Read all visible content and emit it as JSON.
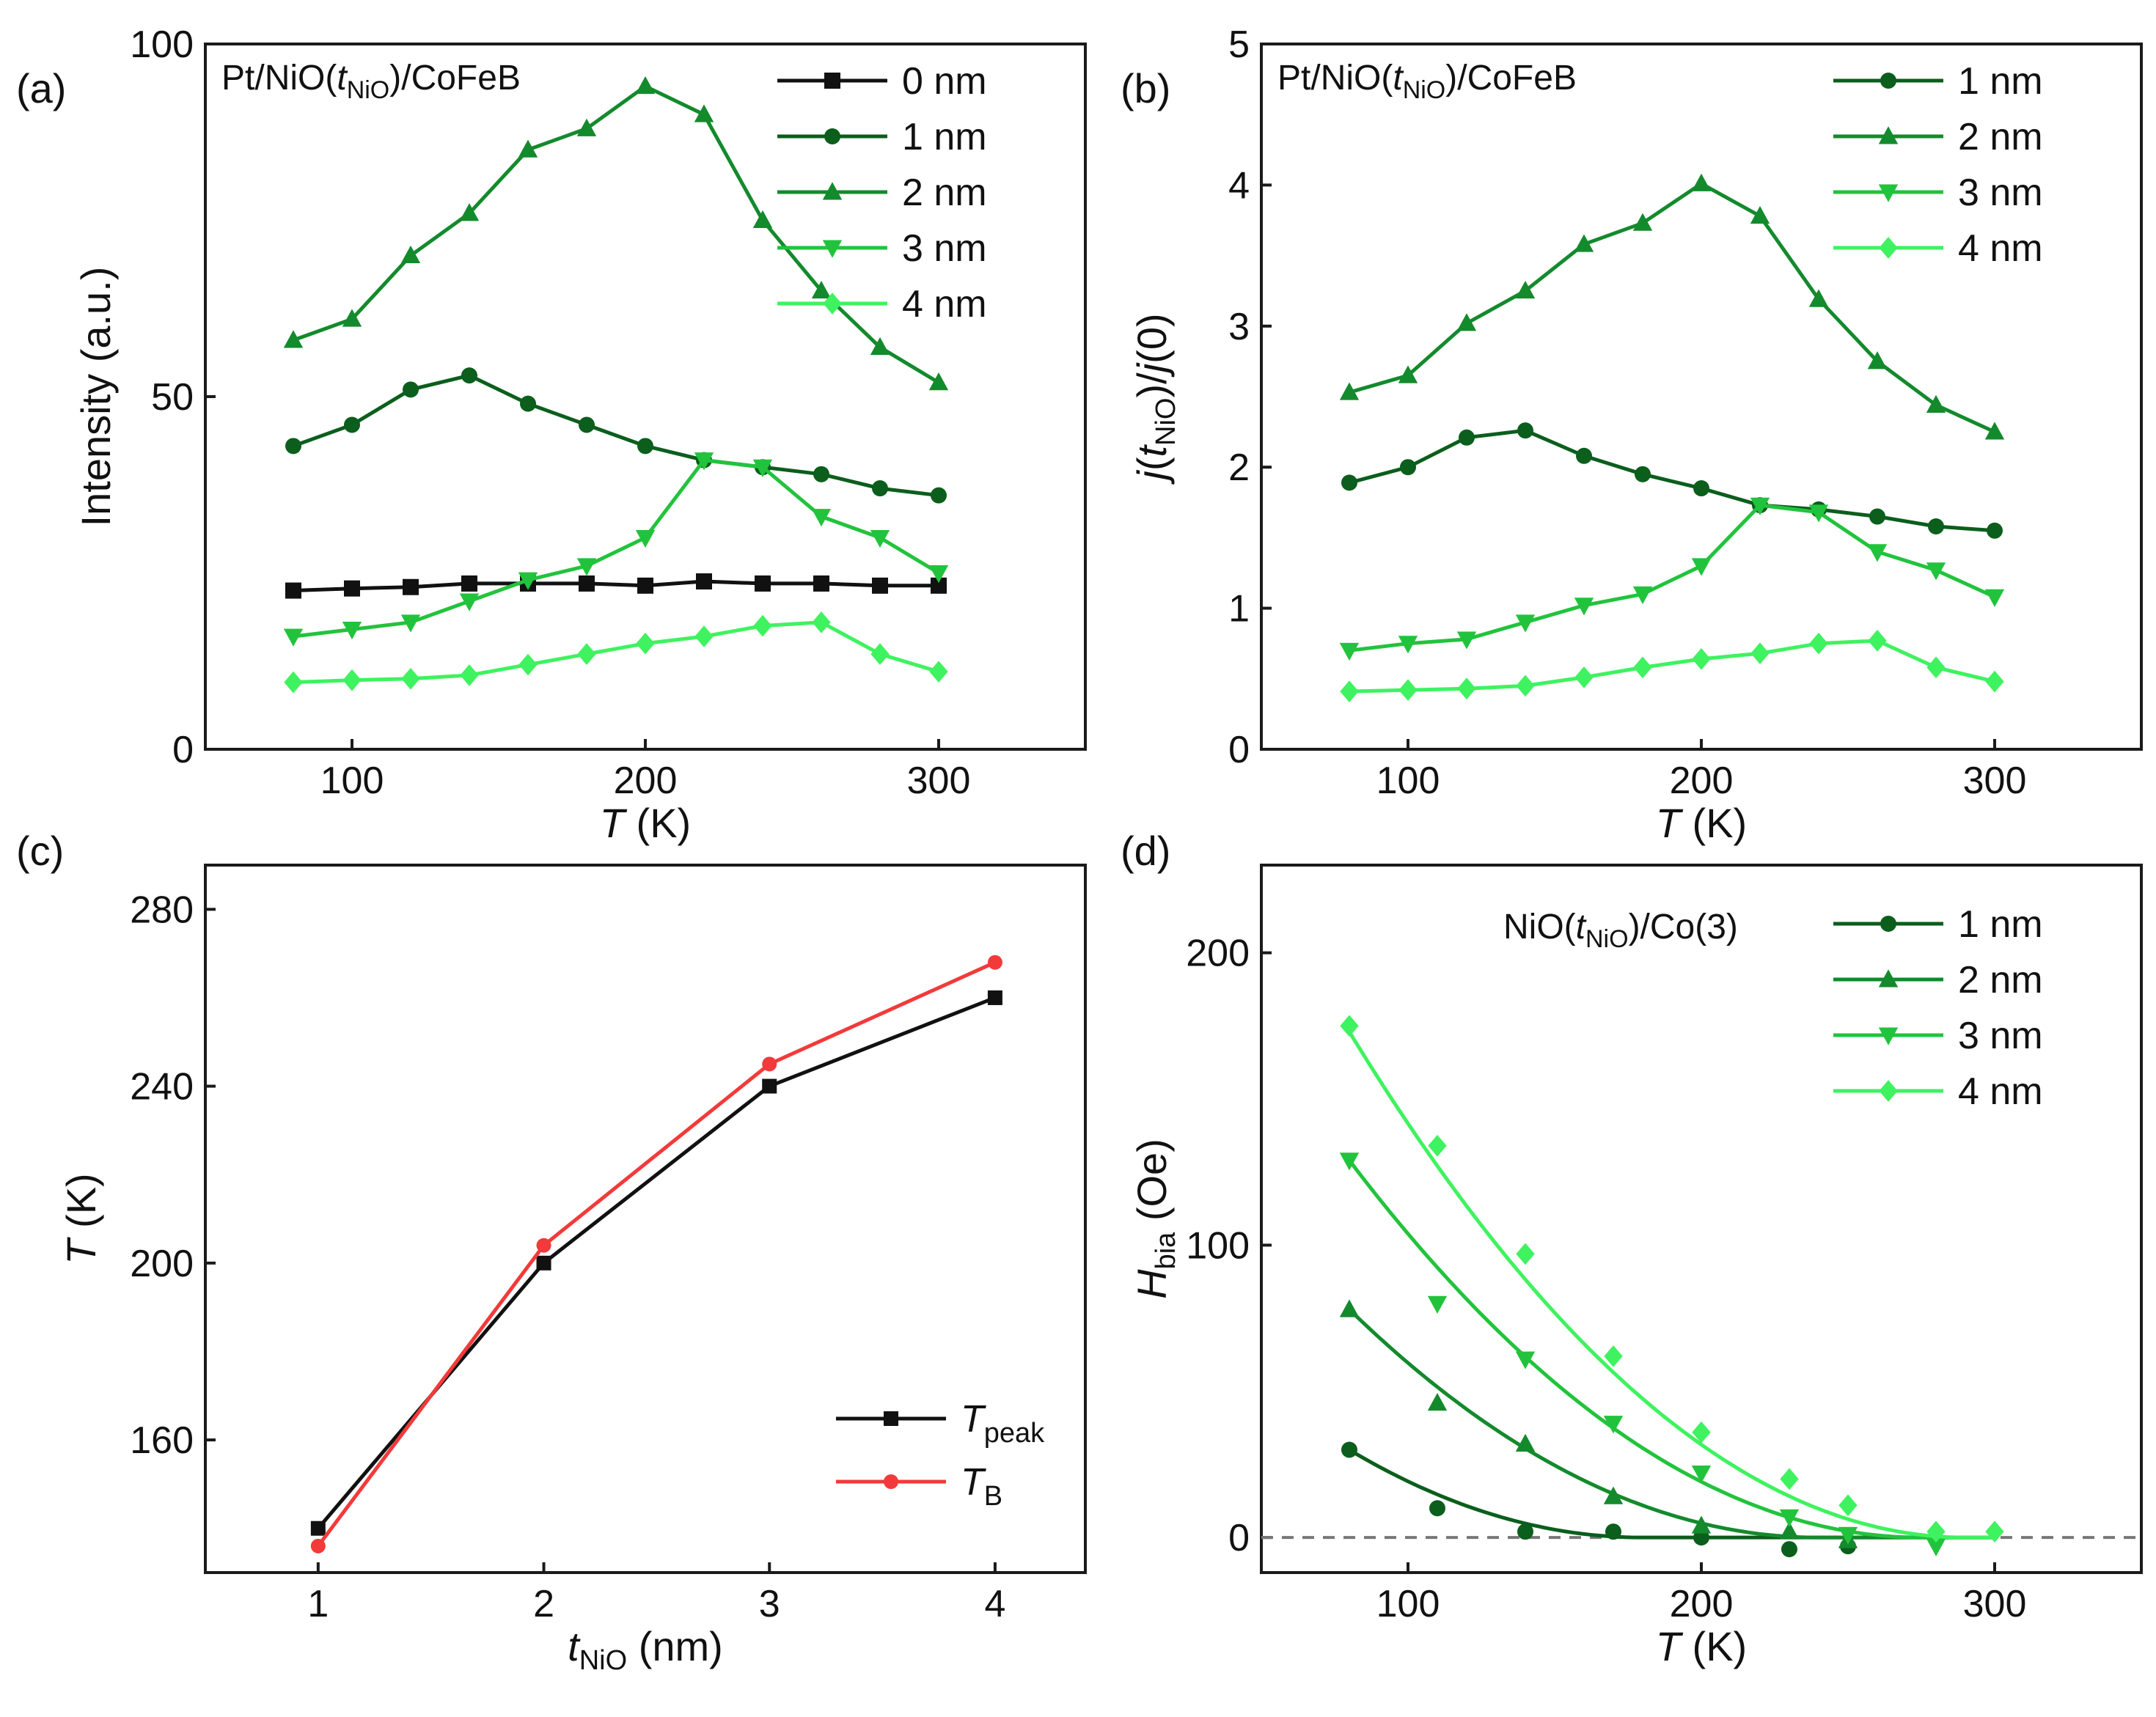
{
  "chart_data": [
    {
      "id": "a",
      "type": "line",
      "panel_label": "(a)",
      "title_parts": {
        "pre": "Pt/NiO(",
        "var": "t",
        "sub": "NiO",
        "post": ")/CoFeB"
      },
      "xlabel": {
        "var": "T",
        "unit": " (K)"
      },
      "ylabel": "Intensity (a.u.)",
      "xlim": [
        50,
        350
      ],
      "ylim": [
        0,
        100
      ],
      "xticks": [
        100,
        200,
        300
      ],
      "yticks": [
        0,
        50,
        100
      ],
      "x": [
        80,
        100,
        120,
        140,
        160,
        180,
        200,
        220,
        240,
        260,
        280,
        300
      ],
      "legend_position": "top-right",
      "series": [
        {
          "name": "0 nm",
          "color": "#111111",
          "marker": "square",
          "values": [
            22.5,
            22.8,
            23.0,
            23.5,
            23.5,
            23.5,
            23.2,
            23.8,
            23.5,
            23.5,
            23.2,
            23.2
          ]
        },
        {
          "name": "1 nm",
          "color": "#0b5e1c",
          "marker": "circle",
          "values": [
            43,
            46,
            51,
            53,
            49,
            46,
            43,
            41,
            40,
            39,
            37,
            36
          ]
        },
        {
          "name": "2 nm",
          "color": "#138a2c",
          "marker": "triangle-up",
          "values": [
            58,
            61,
            70,
            76,
            85,
            88,
            94,
            90,
            75,
            65,
            57,
            52
          ]
        },
        {
          "name": "3 nm",
          "color": "#22c33c",
          "marker": "triangle-down",
          "values": [
            16,
            17,
            18,
            21,
            24,
            26,
            30,
            41,
            40,
            33,
            30,
            25
          ]
        },
        {
          "name": "4 nm",
          "color": "#3ff25f",
          "marker": "diamond",
          "values": [
            9.5,
            9.8,
            10,
            10.5,
            12,
            13.5,
            15,
            16,
            17.5,
            18,
            13.5,
            11
          ]
        }
      ]
    },
    {
      "id": "b",
      "type": "line",
      "panel_label": "(b)",
      "title_parts": {
        "pre": "Pt/NiO(",
        "var": "t",
        "sub": "NiO",
        "post": ")/CoFeB"
      },
      "xlabel": {
        "var": "T",
        "unit": " (K)"
      },
      "ylabel_parts": {
        "a": "j",
        "b": "(",
        "c": "t",
        "sub": "NiO",
        "d": ")/",
        "e": "j",
        "f": "(0)"
      },
      "xlim": [
        50,
        350
      ],
      "ylim": [
        0,
        5
      ],
      "xticks": [
        100,
        200,
        300
      ],
      "yticks": [
        0,
        1,
        2,
        3,
        4,
        5
      ],
      "x": [
        80,
        100,
        120,
        140,
        160,
        180,
        200,
        220,
        240,
        260,
        280,
        300
      ],
      "legend_position": "top-right",
      "series": [
        {
          "name": "1 nm",
          "color": "#0b5e1c",
          "marker": "circle",
          "values": [
            1.89,
            2.0,
            2.21,
            2.26,
            2.08,
            1.95,
            1.85,
            1.73,
            1.7,
            1.65,
            1.58,
            1.55
          ]
        },
        {
          "name": "2 nm",
          "color": "#138a2c",
          "marker": "triangle-up",
          "values": [
            2.53,
            2.65,
            3.02,
            3.25,
            3.58,
            3.73,
            4.01,
            3.78,
            3.19,
            2.75,
            2.44,
            2.25
          ]
        },
        {
          "name": "3 nm",
          "color": "#22c33c",
          "marker": "triangle-down",
          "values": [
            0.7,
            0.75,
            0.78,
            0.9,
            1.02,
            1.1,
            1.3,
            1.73,
            1.68,
            1.4,
            1.27,
            1.08
          ]
        },
        {
          "name": "4 nm",
          "color": "#3ff25f",
          "marker": "diamond",
          "values": [
            0.41,
            0.42,
            0.43,
            0.45,
            0.51,
            0.58,
            0.64,
            0.68,
            0.75,
            0.77,
            0.58,
            0.48
          ]
        }
      ]
    },
    {
      "id": "c",
      "type": "line",
      "panel_label": "(c)",
      "xlabel": {
        "var": "t",
        "sub": "NiO",
        "unit": " (nm)"
      },
      "ylabel": {
        "var": "T",
        "unit": " (K)"
      },
      "xlim": [
        0.5,
        4.4
      ],
      "ylim": [
        130,
        290
      ],
      "xticks": [
        1,
        2,
        3,
        4
      ],
      "yticks": [
        160,
        200,
        240,
        280
      ],
      "x": [
        1,
        2,
        3,
        4
      ],
      "legend_position": "bottom-right",
      "series": [
        {
          "name": "T",
          "sub": "peak",
          "color": "#111111",
          "marker": "square",
          "values": [
            140,
            200,
            240,
            260
          ]
        },
        {
          "name": "T",
          "sub": "B",
          "color": "#f23a3a",
          "marker": "circle",
          "values": [
            136,
            204,
            245,
            268
          ]
        }
      ]
    },
    {
      "id": "d",
      "type": "scatter",
      "panel_label": "(d)",
      "title_parts": {
        "pre": "NiO(",
        "var": "t",
        "sub": "NiO",
        "post": ")/Co(3)"
      },
      "xlabel": {
        "var": "T",
        "unit": " (K)"
      },
      "ylabel": {
        "var": "H",
        "sub": "bia",
        "unit": " (Oe)"
      },
      "xlim": [
        50,
        350
      ],
      "ylim": [
        -12,
        230
      ],
      "xticks": [
        100,
        200,
        300
      ],
      "yticks": [
        0,
        100,
        200
      ],
      "zero_line": true,
      "legend_position": "top-right",
      "series": [
        {
          "name": "1 nm",
          "color": "#0b5e1c",
          "marker": "circle",
          "x": [
            80,
            110,
            140,
            170,
            200,
            230,
            250
          ],
          "values": [
            30,
            10,
            2,
            2,
            0,
            -4,
            -3
          ],
          "fit": {
            "a": 30,
            "t0": 180,
            "p": 2
          }
        },
        {
          "name": "2 nm",
          "color": "#138a2c",
          "marker": "triangle-up",
          "x": [
            80,
            110,
            140,
            170,
            200,
            230,
            250
          ],
          "values": [
            78,
            46,
            32,
            14,
            4,
            2,
            -1
          ],
          "fit": {
            "a": 78,
            "t0": 240,
            "p": 2
          }
        },
        {
          "name": "3 nm",
          "color": "#22c33c",
          "marker": "triangle-down",
          "x": [
            80,
            110,
            140,
            170,
            200,
            230,
            250,
            280
          ],
          "values": [
            129,
            80,
            61,
            39,
            22,
            7,
            1,
            -3
          ],
          "fit": {
            "a": 129,
            "t0": 275,
            "p": 2
          }
        },
        {
          "name": "4 nm",
          "color": "#3ff25f",
          "marker": "diamond",
          "x": [
            80,
            110,
            140,
            170,
            200,
            230,
            250,
            280,
            300
          ],
          "values": [
            175,
            134,
            97,
            62,
            36,
            20,
            11,
            2,
            2
          ],
          "fit": {
            "a": 173,
            "t0": 290,
            "p": 2
          }
        }
      ]
    }
  ]
}
